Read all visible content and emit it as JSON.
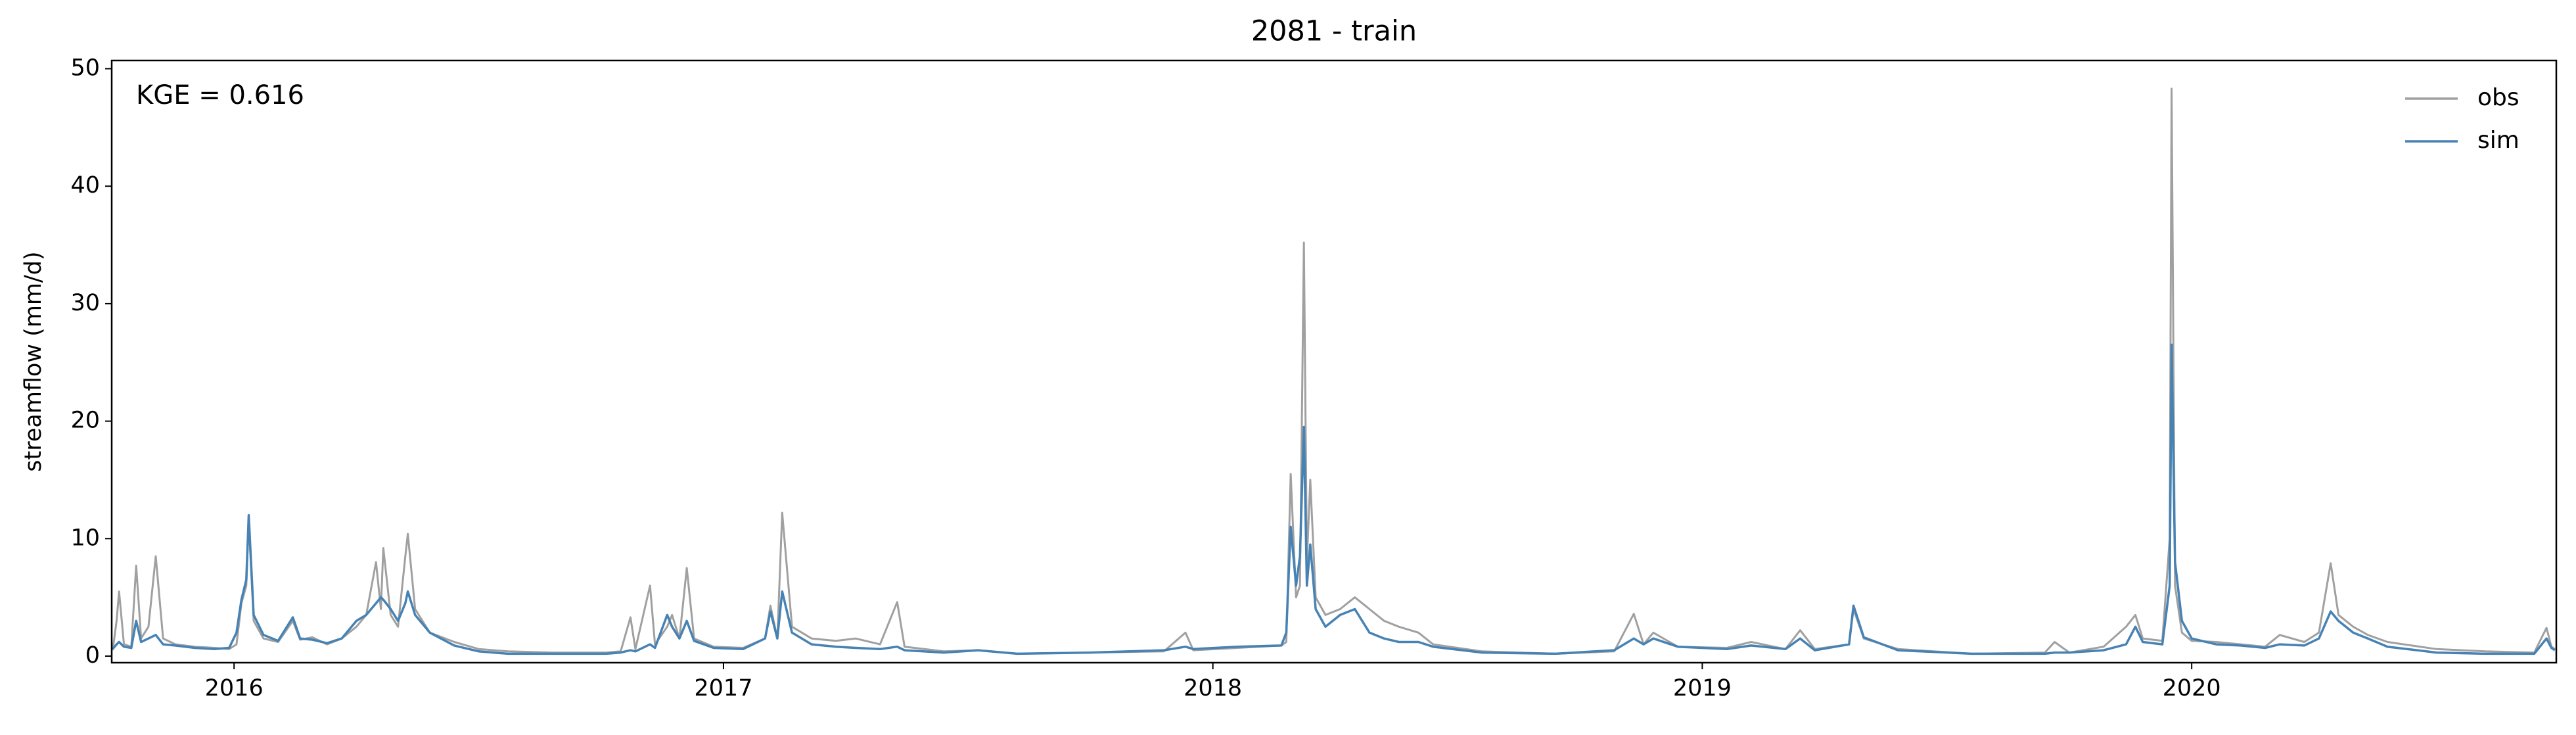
{
  "chart_data": {
    "type": "line",
    "title": "2081 - train",
    "y_label": "streamflow (mm/d)",
    "annotation": "KGE = 0.616",
    "legend": "upper right",
    "xlim": [
      2015.75,
      2020.745
    ],
    "xticks": [
      2016,
      2017,
      2018,
      2019,
      2020
    ],
    "ylim": [
      -0.56,
      50.7
    ],
    "yticks": [
      0,
      10,
      20,
      30,
      40,
      50
    ],
    "x": [
      2015.752,
      2015.76,
      2015.765,
      2015.775,
      2015.79,
      2015.8,
      2015.81,
      2015.825,
      2015.84,
      2015.855,
      2015.88,
      2015.92,
      2015.96,
      2015.99,
      2016.005,
      2016.015,
      2016.025,
      2016.03,
      2016.04,
      2016.06,
      2016.09,
      2016.12,
      2016.135,
      2016.16,
      2016.19,
      2016.22,
      2016.25,
      2016.27,
      2016.29,
      2016.3,
      2016.305,
      2016.32,
      2016.335,
      2016.35,
      2016.355,
      2016.37,
      2016.4,
      2016.45,
      2016.5,
      2016.56,
      2016.65,
      2016.76,
      2016.79,
      2016.81,
      2016.82,
      2016.85,
      2016.86,
      2016.885,
      2016.895,
      2016.91,
      2016.925,
      2016.94,
      2016.98,
      2017.04,
      2017.085,
      2017.096,
      2017.11,
      2017.12,
      2017.14,
      2017.18,
      2017.23,
      2017.27,
      2017.32,
      2017.355,
      2017.37,
      2017.45,
      2017.52,
      2017.6,
      2017.75,
      2017.9,
      2017.944,
      2017.96,
      2018.05,
      2018.14,
      2018.15,
      2018.159,
      2018.17,
      2018.178,
      2018.186,
      2018.192,
      2018.199,
      2018.21,
      2018.23,
      2018.26,
      2018.29,
      2018.32,
      2018.35,
      2018.38,
      2018.42,
      2018.45,
      2018.55,
      2018.7,
      2018.82,
      2018.86,
      2018.88,
      2018.9,
      2018.95,
      2019.05,
      2019.1,
      2019.17,
      2019.2,
      2019.23,
      2019.3,
      2019.309,
      2019.33,
      2019.4,
      2019.55,
      2019.7,
      2019.72,
      2019.75,
      2019.82,
      2019.866,
      2019.885,
      2019.9,
      2019.94,
      2019.955,
      2019.959,
      2019.966,
      2019.98,
      2020.0,
      2020.05,
      2020.1,
      2020.15,
      2020.18,
      2020.23,
      2020.26,
      2020.284,
      2020.3,
      2020.33,
      2020.36,
      2020.4,
      2020.5,
      2020.6,
      2020.7,
      2020.725,
      2020.735,
      2020.742
    ],
    "series": [
      {
        "name": "obs",
        "color": "#a0a0a0",
        "values": [
          0.5,
          3.0,
          5.5,
          1.0,
          0.8,
          7.7,
          1.5,
          2.5,
          8.5,
          1.5,
          1.0,
          0.8,
          0.7,
          0.6,
          1.0,
          4.5,
          6.0,
          11.5,
          3.0,
          1.5,
          1.2,
          3.0,
          1.4,
          1.6,
          1.0,
          1.5,
          2.5,
          3.5,
          8.0,
          4.0,
          9.2,
          3.5,
          2.5,
          8.5,
          10.4,
          4.0,
          2.0,
          1.2,
          0.6,
          0.4,
          0.3,
          0.3,
          0.4,
          3.3,
          0.6,
          6.0,
          1.0,
          2.5,
          3.5,
          1.5,
          7.5,
          1.5,
          0.8,
          0.7,
          1.5,
          4.3,
          1.5,
          12.2,
          2.5,
          1.5,
          1.3,
          1.5,
          1.0,
          4.6,
          0.8,
          0.4,
          0.5,
          0.2,
          0.3,
          0.4,
          2.0,
          0.5,
          0.7,
          0.9,
          1.2,
          15.5,
          5.0,
          6.0,
          35.2,
          8.0,
          15.0,
          5.0,
          3.5,
          4.0,
          5.0,
          4.0,
          3.0,
          2.5,
          2.0,
          1.0,
          0.4,
          0.2,
          0.4,
          3.6,
          1.0,
          2.0,
          0.8,
          0.7,
          1.2,
          0.6,
          2.2,
          0.6,
          1.0,
          4.0,
          1.5,
          0.6,
          0.2,
          0.3,
          1.2,
          0.3,
          0.8,
          2.5,
          3.5,
          1.5,
          1.3,
          10.0,
          48.3,
          6.0,
          2.0,
          1.3,
          1.2,
          1.0,
          0.8,
          1.8,
          1.2,
          2.0,
          7.9,
          3.5,
          2.5,
          1.8,
          1.2,
          0.6,
          0.4,
          0.3,
          2.4,
          0.8,
          0.6
        ]
      },
      {
        "name": "sim",
        "color": "#4682b4",
        "values": [
          0.6,
          1.0,
          1.2,
          0.8,
          0.7,
          3.0,
          1.2,
          1.5,
          1.8,
          1.0,
          0.9,
          0.7,
          0.6,
          0.7,
          2.0,
          4.8,
          6.5,
          12.0,
          3.5,
          1.8,
          1.3,
          3.3,
          1.5,
          1.4,
          1.1,
          1.5,
          3.0,
          3.5,
          4.5,
          5.0,
          4.8,
          4.0,
          3.0,
          4.5,
          5.5,
          3.5,
          2.0,
          0.9,
          0.4,
          0.2,
          0.2,
          0.2,
          0.3,
          0.5,
          0.4,
          1.0,
          0.7,
          3.5,
          2.5,
          1.5,
          3.0,
          1.3,
          0.7,
          0.6,
          1.5,
          3.8,
          1.5,
          5.5,
          2.0,
          1.0,
          0.8,
          0.7,
          0.6,
          0.8,
          0.5,
          0.3,
          0.5,
          0.2,
          0.3,
          0.5,
          0.8,
          0.6,
          0.8,
          0.9,
          2.0,
          11.0,
          6.0,
          8.5,
          19.5,
          6.0,
          9.5,
          4.0,
          2.5,
          3.5,
          4.0,
          2.0,
          1.5,
          1.2,
          1.2,
          0.8,
          0.3,
          0.2,
          0.5,
          1.5,
          1.0,
          1.5,
          0.8,
          0.6,
          0.9,
          0.6,
          1.5,
          0.5,
          1.0,
          4.3,
          1.6,
          0.5,
          0.2,
          0.2,
          0.3,
          0.3,
          0.5,
          1.0,
          2.5,
          1.2,
          1.0,
          6.0,
          26.5,
          8.0,
          3.0,
          1.5,
          1.0,
          0.9,
          0.7,
          1.0,
          0.9,
          1.5,
          3.8,
          3.0,
          2.0,
          1.5,
          0.8,
          0.3,
          0.2,
          0.2,
          1.5,
          0.7,
          0.5
        ]
      }
    ]
  }
}
